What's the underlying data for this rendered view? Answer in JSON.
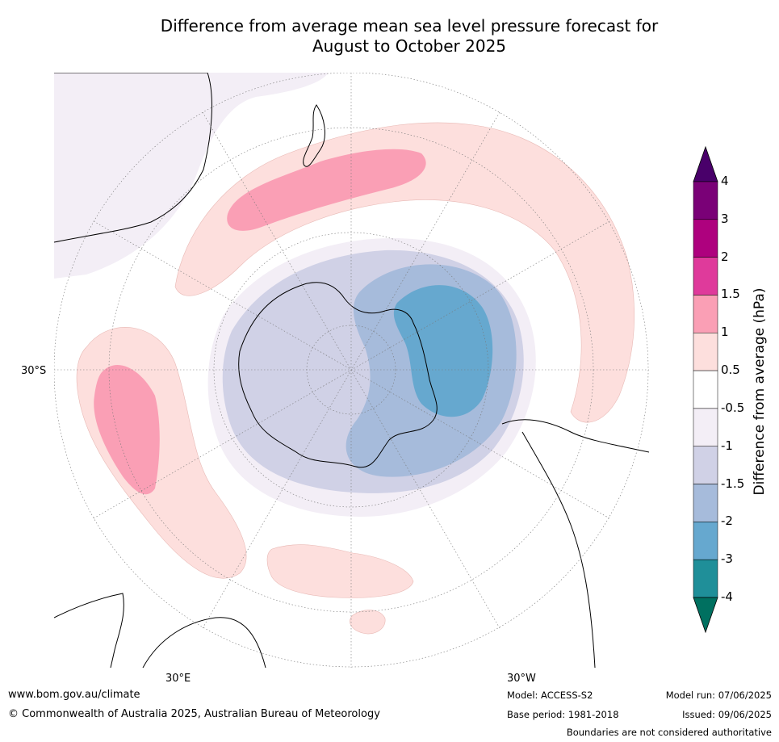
{
  "title_line1": "Difference from average mean sea level pressure forecast for",
  "title_line2": "August to October 2025",
  "map": {
    "projection": "south-polar-stereographic",
    "labels": {
      "lat_30s": "30°S",
      "lon_30e": "30°E",
      "lon_30w": "30°W"
    },
    "land_color": "#ffffff",
    "coast_color": "#000000"
  },
  "colorbar": {
    "title": "Difference from average (hPa)",
    "bins": [
      {
        "from": "below -4",
        "color": "#007060"
      },
      {
        "from": "-4",
        "to": "-3",
        "color": "#1f8f99"
      },
      {
        "from": "-3",
        "to": "-2",
        "color": "#66a8cf"
      },
      {
        "from": "-2",
        "to": "-1.5",
        "color": "#a6bbdb"
      },
      {
        "from": "-1.5",
        "to": "-1",
        "color": "#d0d1e6"
      },
      {
        "from": "-1",
        "to": "-0.5",
        "color": "#f3eef6"
      },
      {
        "from": "-0.5",
        "to": "0.5",
        "color": "#ffffff"
      },
      {
        "from": "0.5",
        "to": "1",
        "color": "#fddfdd"
      },
      {
        "from": "1",
        "to": "1.5",
        "color": "#fa9fb5"
      },
      {
        "from": "1.5",
        "to": "2",
        "color": "#df3a9b"
      },
      {
        "from": "2",
        "to": "3",
        "color": "#ae017e"
      },
      {
        "from": "3",
        "to": "4",
        "color": "#7a0177"
      },
      {
        "from": "above 4",
        "color": "#49006a"
      }
    ],
    "tick_labels": [
      "-4",
      "-3",
      "-2",
      "-1.5",
      "-1",
      "-0.5",
      "0.5",
      "1",
      "1.5",
      "2",
      "3",
      "4"
    ]
  },
  "footer": {
    "website": "www.bom.gov.au/climate",
    "copyright": "© Commonwealth of Australia 2025, Australian Bureau of Meteorology",
    "model": "Model: ACCESS-S2",
    "base_period": "Base period: 1981-2018",
    "model_run": "Model run: 07/06/2025",
    "issued": "Issued: 09/06/2025",
    "disclaimer": "Boundaries are not considered authoritative"
  }
}
